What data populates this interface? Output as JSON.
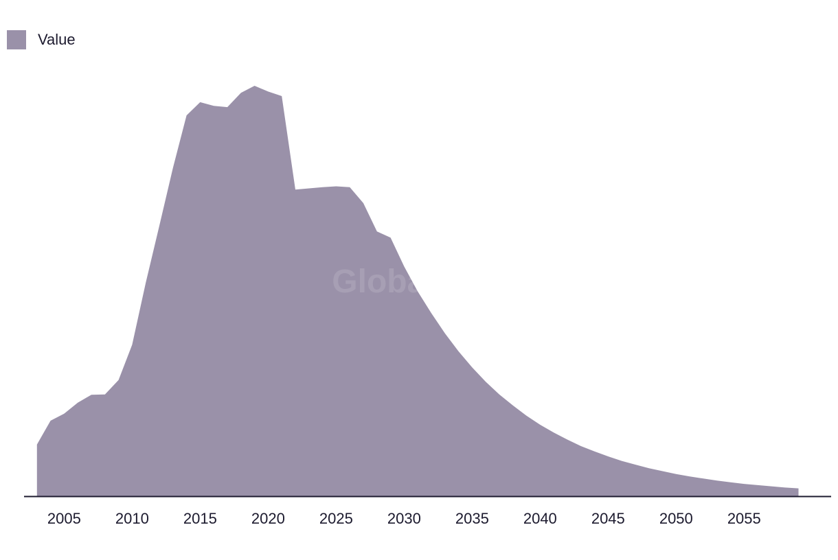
{
  "colors": {
    "area": "#9a91a9",
    "axis": "#1c1a2e",
    "text": "#1c1a2e"
  },
  "watermark": "GlobalData",
  "chart_data": {
    "type": "area",
    "title": "",
    "xlabel": "",
    "ylabel": "",
    "legend": {
      "position": "top-left",
      "entries": [
        "Value"
      ]
    },
    "grid": false,
    "x_ticks": [
      2005,
      2010,
      2015,
      2020,
      2025,
      2030,
      2035,
      2040,
      2045,
      2050,
      2055
    ],
    "xlim": [
      2002.05,
      2061.4
    ],
    "ylim": [
      0,
      100
    ],
    "series": [
      {
        "name": "Value",
        "x": [
          2003,
          2004,
          2005,
          2006,
          2007,
          2008,
          2009,
          2010,
          2011,
          2012,
          2013,
          2014,
          2015,
          2016,
          2017,
          2018,
          2019,
          2020,
          2021,
          2022,
          2023,
          2024,
          2025,
          2026,
          2027,
          2028,
          2029,
          2030,
          2031,
          2032,
          2033,
          2034,
          2035,
          2036,
          2037,
          2038,
          2039,
          2040,
          2041,
          2042,
          2043,
          2044,
          2045,
          2046,
          2047,
          2048,
          2049,
          2050,
          2051,
          2052,
          2053,
          2054,
          2055,
          2056,
          2057,
          2058,
          2059
        ],
        "values": [
          12.6,
          18.4,
          20.1,
          22.8,
          24.7,
          24.8,
          28.3,
          36.9,
          52.0,
          65.9,
          80.0,
          92.8,
          96.0,
          95.1,
          94.8,
          98.3,
          100.0,
          98.6,
          97.5,
          74.7,
          75.0,
          75.3,
          75.5,
          75.3,
          71.4,
          64.5,
          63.0,
          56.0,
          49.9,
          44.6,
          39.7,
          35.3,
          31.4,
          27.9,
          24.8,
          22.1,
          19.6,
          17.4,
          15.5,
          13.8,
          12.2,
          10.9,
          9.7,
          8.6,
          7.7,
          6.8,
          6.1,
          5.4,
          4.8,
          4.3,
          3.8,
          3.4,
          3.0,
          2.7,
          2.4,
          2.1,
          1.9
        ]
      }
    ]
  }
}
